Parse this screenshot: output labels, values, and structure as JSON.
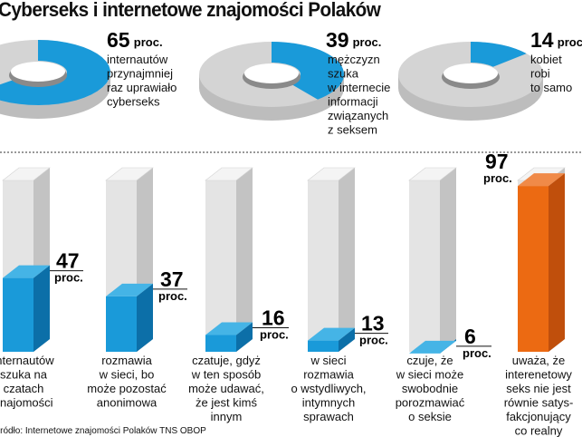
{
  "title": "Cyberseks i internetowe znajomości Polaków",
  "source": "Źródło: Internetowe znajomości Polaków TNS OBOP",
  "colors": {
    "blue": "#1a9ad9",
    "blue_dark": "#0c6fa8",
    "orange": "#ec6a12",
    "gray_side": "#c3c3c3",
    "gray_front": "#e4e4e4",
    "gray_top": "#f4f4f4",
    "ring_gray": "#d4d4d4"
  },
  "chart_data": [
    {
      "type": "pie",
      "panel": "donuts",
      "unit": "proc.",
      "slices": [
        {
          "value": 65,
          "lines": [
            "internautów",
            "przynajmniej",
            "raz uprawiało",
            "cyberseks"
          ]
        },
        {
          "value": 39,
          "lines": [
            "mężczyzn",
            "szuka",
            "w internecie",
            "informacji",
            "związanych",
            "z seksem"
          ]
        },
        {
          "value": 14,
          "lines": [
            "kobiet",
            "robi",
            "to samo"
          ]
        }
      ]
    },
    {
      "type": "bar",
      "panel": "columns",
      "unit": "proc.",
      "ylim": [
        0,
        100
      ],
      "values": [
        47,
        37,
        16,
        13,
        6,
        97
      ],
      "categories": [
        [
          "internautów",
          "szuka na",
          "czatach",
          "znajomości"
        ],
        [
          "rozmawia",
          "w sieci, bo",
          "może pozostać",
          "anonimowa"
        ],
        [
          "czatuje, gdyż",
          "w ten sposób",
          "może udawać,",
          "że jest kimś",
          "innym"
        ],
        [
          "w sieci",
          "rozmawia",
          "o wstydliwych,",
          "intymnych",
          "sprawach"
        ],
        [
          "czuje, że",
          "w sieci może",
          "swobodnie",
          "porozmawiać",
          "o seksie"
        ],
        [
          "uważa, że",
          "interenetowy",
          "seks nie jest",
          "równie satys-",
          "fakcjonujący",
          "co realny"
        ]
      ]
    }
  ]
}
